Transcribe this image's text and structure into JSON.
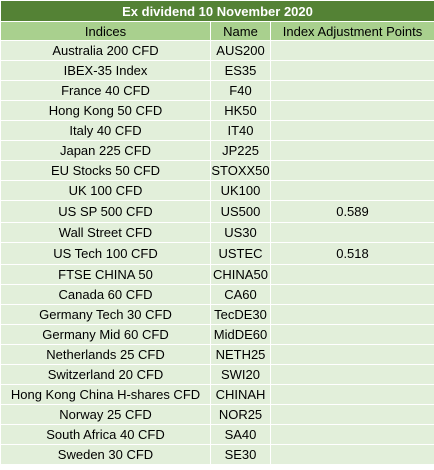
{
  "title": "Ex dividend 10 November 2020",
  "columns": [
    "Indices",
    "Name",
    "Index Adjustment Points"
  ],
  "rows": [
    {
      "index": "Australia 200 CFD",
      "name": "AUS200",
      "points": ""
    },
    {
      "index": "IBEX-35 Index",
      "name": "ES35",
      "points": ""
    },
    {
      "index": "France 40 CFD",
      "name": "F40",
      "points": ""
    },
    {
      "index": "Hong Kong 50 CFD",
      "name": "HK50",
      "points": ""
    },
    {
      "index": "Italy 40 CFD",
      "name": "IT40",
      "points": ""
    },
    {
      "index": "Japan 225 CFD",
      "name": "JP225",
      "points": ""
    },
    {
      "index": "EU Stocks 50 CFD",
      "name": "STOXX50",
      "points": ""
    },
    {
      "index": "UK 100 CFD",
      "name": "UK100",
      "points": ""
    },
    {
      "index": "US SP 500 CFD",
      "name": "US500",
      "points": "0.589"
    },
    {
      "index": "Wall Street CFD",
      "name": "US30",
      "points": ""
    },
    {
      "index": "US Tech 100 CFD",
      "name": "USTEC",
      "points": "0.518"
    },
    {
      "index": "FTSE CHINA 50",
      "name": "CHINA50",
      "points": ""
    },
    {
      "index": "Canada 60 CFD",
      "name": "CA60",
      "points": ""
    },
    {
      "index": "Germany Tech 30 CFD",
      "name": "TecDE30",
      "points": ""
    },
    {
      "index": "Germany Mid 60 CFD",
      "name": "MidDE60",
      "points": ""
    },
    {
      "index": "Netherlands 25 CFD",
      "name": "NETH25",
      "points": ""
    },
    {
      "index": "Switzerland 20 CFD",
      "name": "SWI20",
      "points": ""
    },
    {
      "index": "Hong Kong China H-shares CFD",
      "name": "CHINAH",
      "points": ""
    },
    {
      "index": "Norway 25 CFD",
      "name": "NOR25",
      "points": ""
    },
    {
      "index": "South Africa 40 CFD",
      "name": "SA40",
      "points": ""
    },
    {
      "index": "Sweden 30 CFD",
      "name": "SE30",
      "points": ""
    }
  ]
}
